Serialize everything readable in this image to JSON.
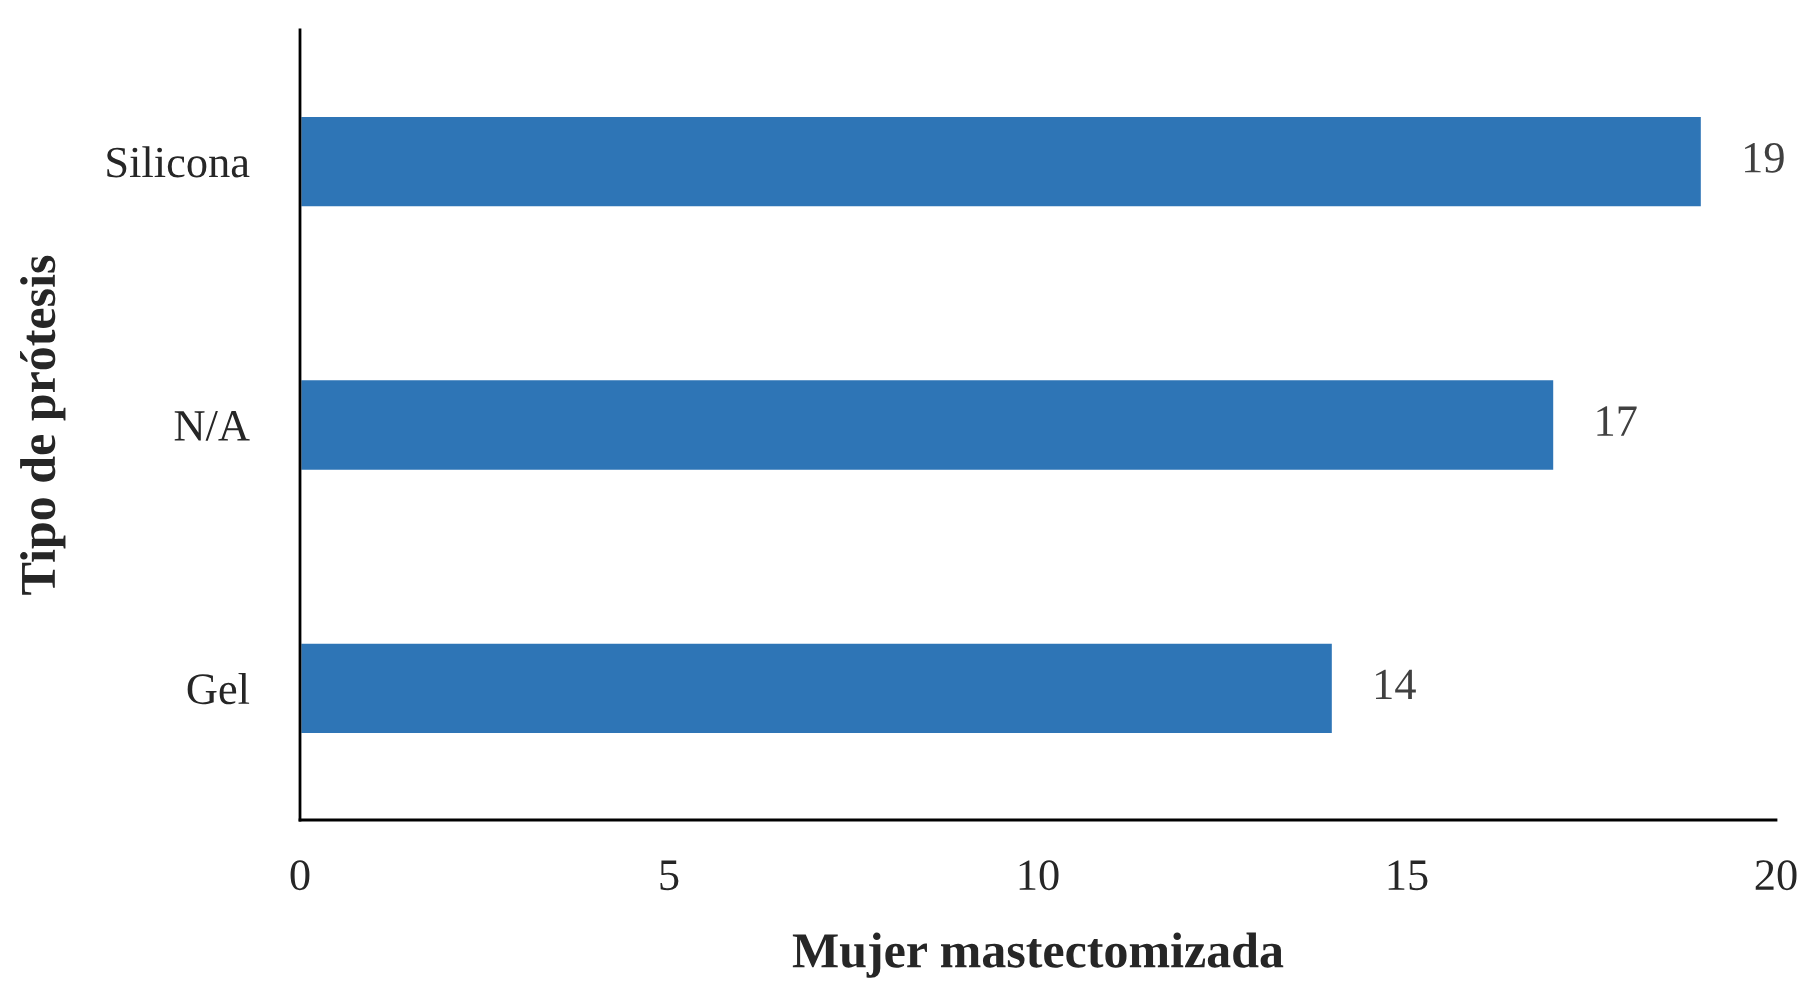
{
  "chart_data": {
    "type": "bar",
    "orientation": "horizontal",
    "xlabel": "Mujer mastectomizada",
    "ylabel": "Tipo de prótesis",
    "categories": [
      "Silicona",
      "N/A",
      "Gel"
    ],
    "values": [
      19,
      17,
      14
    ],
    "color": "#2e75b6",
    "data_labels": true,
    "xlim": [
      0,
      20
    ],
    "xticks": [
      0,
      5,
      10,
      15,
      20
    ],
    "grid": false,
    "legend": false
  }
}
